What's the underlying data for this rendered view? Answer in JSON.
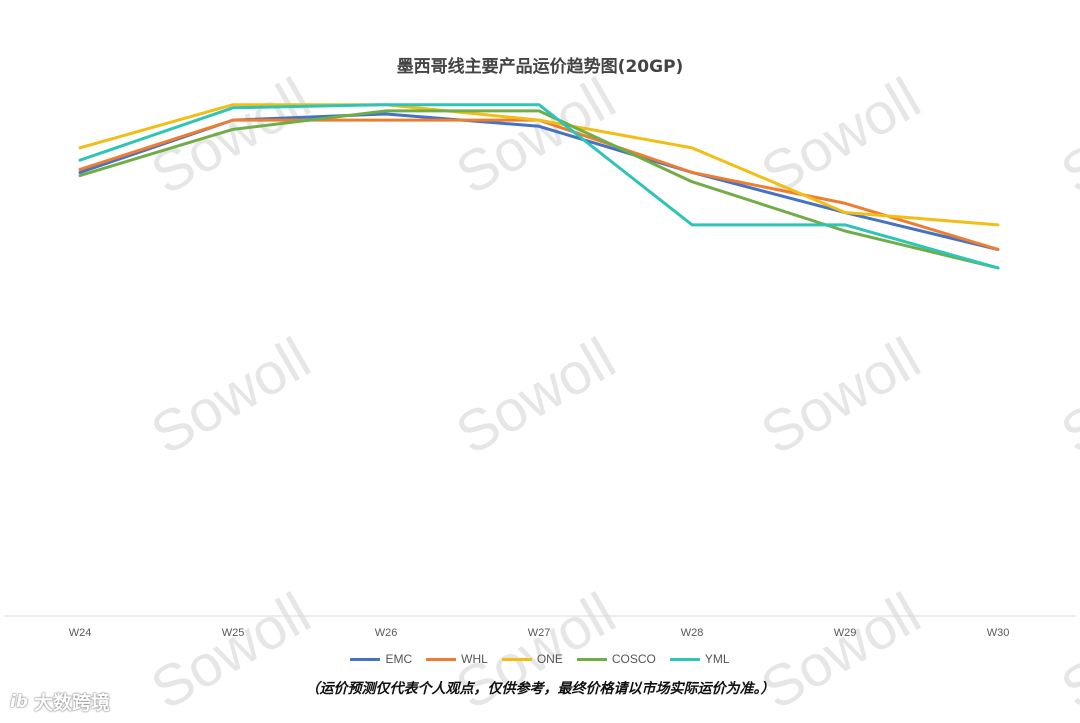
{
  "watermark": "Sowoll",
  "brand": {
    "logo_text": "ib",
    "name": "大数跨境"
  },
  "note": "（运价预测仅代表个人观点，仅供参考，最终价格请以市场实际运价为准。）",
  "chart_data": {
    "type": "line",
    "title": "墨西哥线主要产品运价趋势图(20GP)",
    "xlabel": "",
    "ylabel": "",
    "categories": [
      "W24",
      "W25",
      "W26",
      "W27",
      "W28",
      "W29",
      "W30"
    ],
    "ylim": [
      0,
      100
    ],
    "grid": false,
    "y_axis_labels": false,
    "legend_position": "bottom",
    "series": [
      {
        "name": "EMC",
        "color": "#4472C4",
        "values": [
          72,
          80.5,
          81.5,
          79.5,
          72,
          65.5,
          59.5
        ]
      },
      {
        "name": "WHL",
        "color": "#ED7D31",
        "values": [
          72.5,
          80.5,
          80.5,
          80.5,
          72,
          67,
          59.5
        ]
      },
      {
        "name": "ONE",
        "color": "#F2BE15",
        "values": [
          76,
          83,
          83,
          80.5,
          76,
          65.5,
          63.5
        ]
      },
      {
        "name": "COSCO",
        "color": "#70AD47",
        "values": [
          71.5,
          79,
          82,
          82,
          70.5,
          62.5,
          56.5
        ]
      },
      {
        "name": "YML",
        "color": "#2EC4B6",
        "values": [
          74,
          82.5,
          83,
          83,
          63.5,
          63.5,
          56.5
        ]
      }
    ]
  }
}
